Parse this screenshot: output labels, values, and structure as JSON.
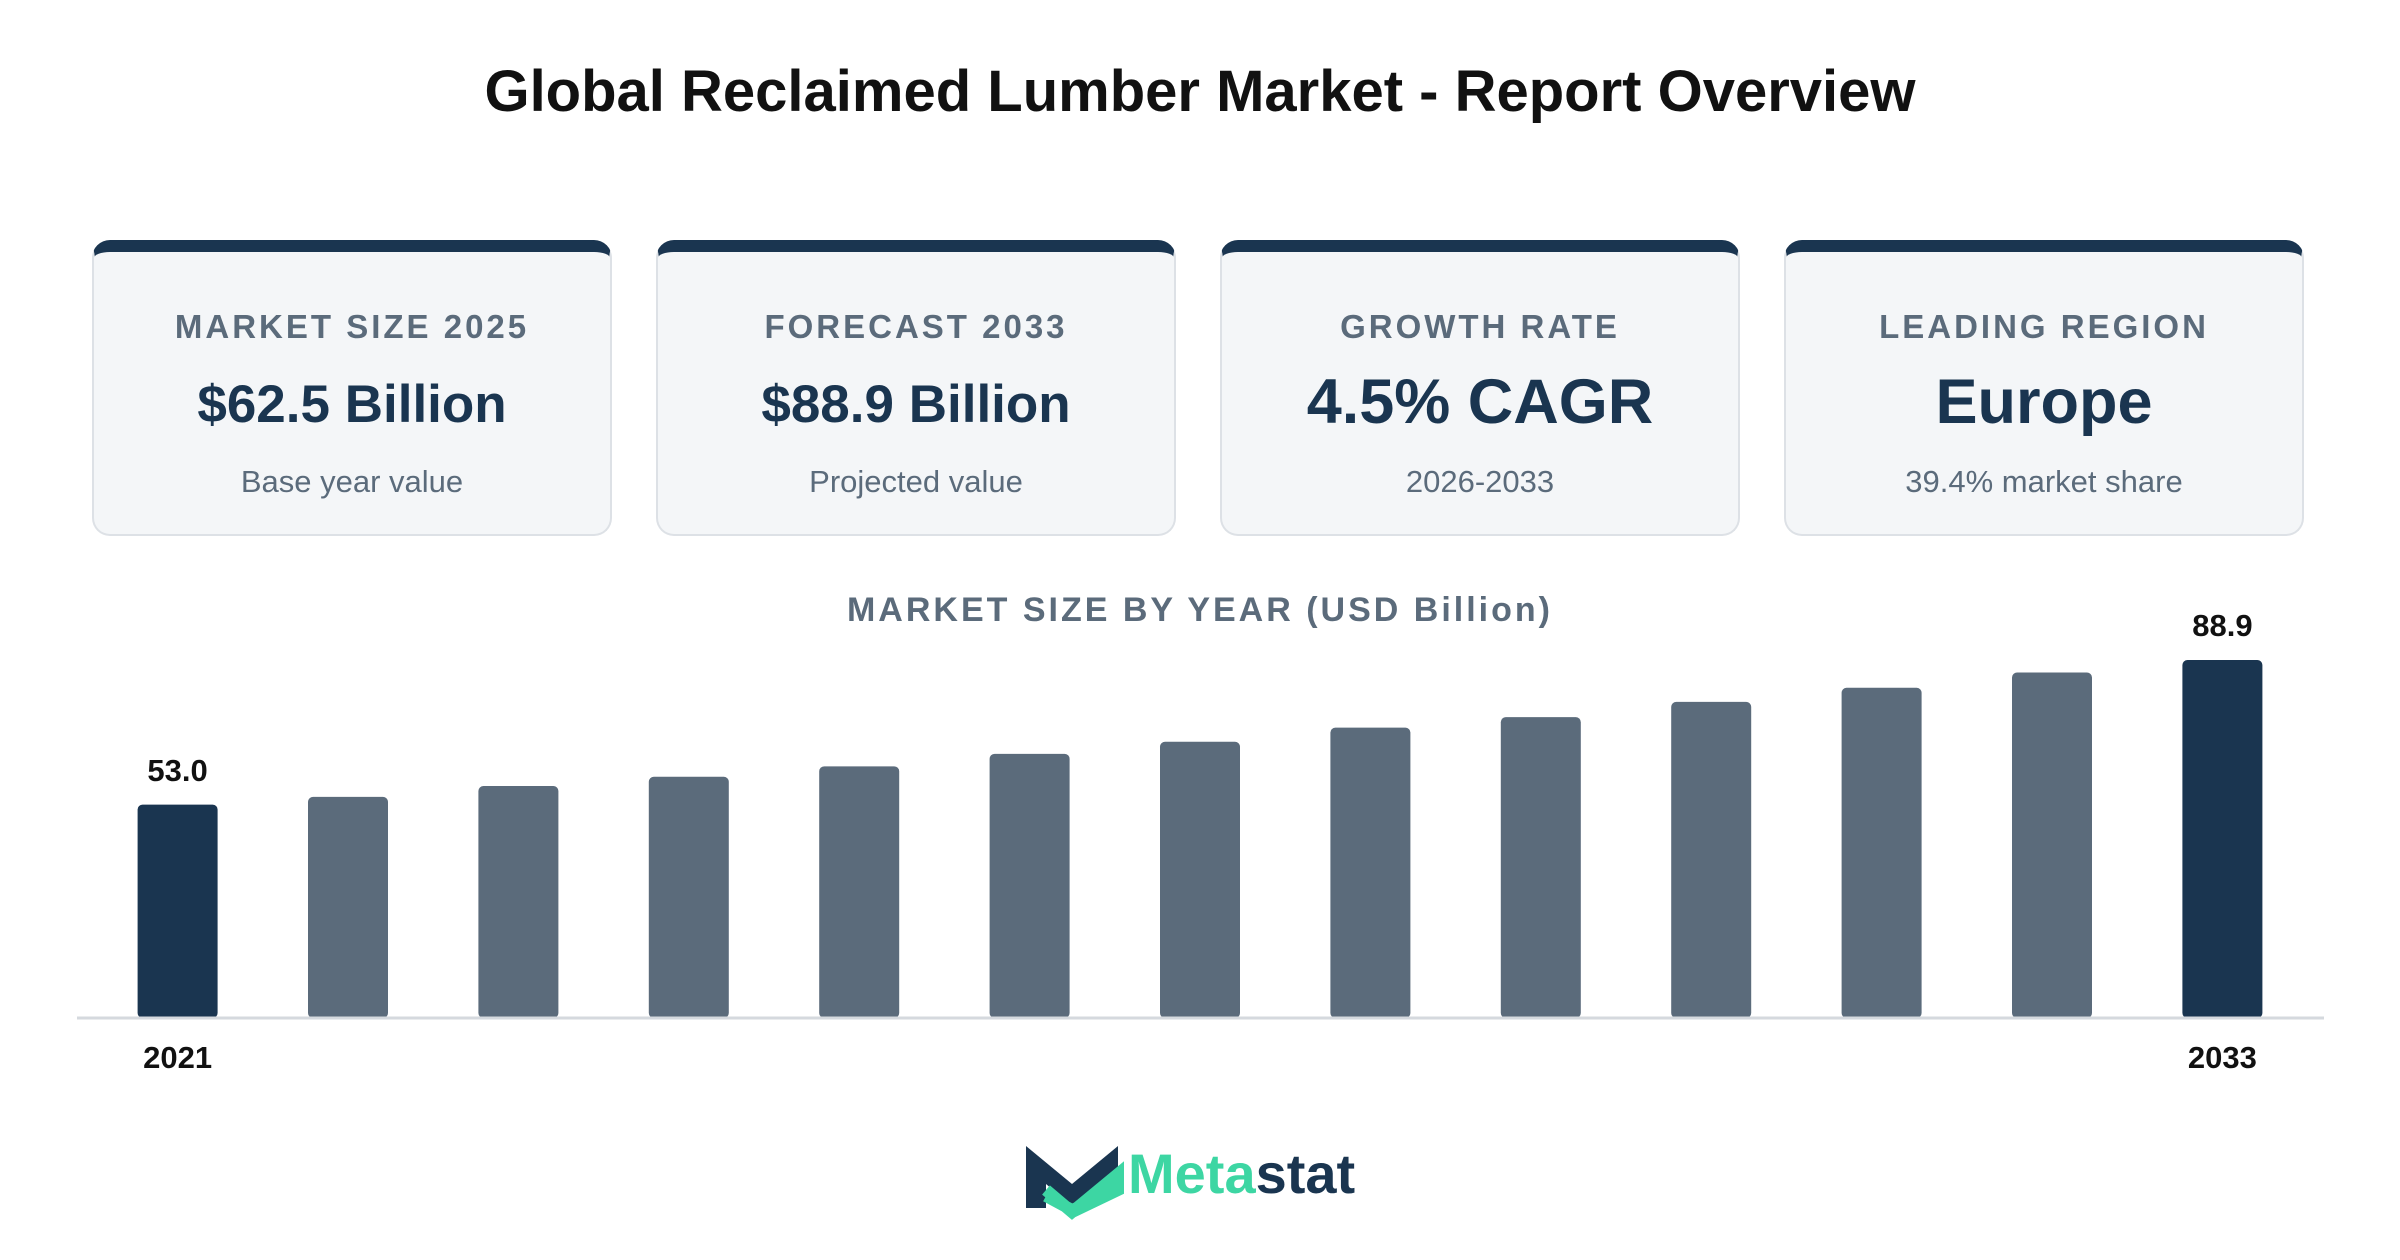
{
  "header": {
    "title": "Global Reclaimed Lumber Market - Report Overview"
  },
  "cards": [
    {
      "label": "MARKET SIZE 2025",
      "value": "$62.5 Billion",
      "note": "Base year value"
    },
    {
      "label": "FORECAST 2033",
      "value": "$88.9 Billion",
      "note": "Projected value"
    },
    {
      "label": "GROWTH RATE",
      "value": "4.5% CAGR",
      "note": "2026-2033"
    },
    {
      "label": "LEADING REGION",
      "value": "Europe",
      "note": "39.4% market share"
    }
  ],
  "chart_data": {
    "type": "bar",
    "title": "MARKET SIZE BY YEAR (USD Billion)",
    "categories": [
      "2021",
      null,
      null,
      null,
      null,
      null,
      null,
      null,
      null,
      null,
      null,
      null,
      "2033"
    ],
    "values": [
      53.0,
      54.9,
      57.6,
      59.9,
      62.5,
      65.6,
      68.6,
      72.1,
      74.7,
      78.5,
      82.0,
      85.8,
      88.9
    ],
    "value_labels": [
      "53.0",
      null,
      null,
      null,
      null,
      null,
      null,
      null,
      null,
      null,
      null,
      null,
      "88.9"
    ],
    "colors": [
      "#1a3550",
      "#5b6b7b",
      "#5b6b7b",
      "#5b6b7b",
      "#5b6b7b",
      "#5b6b7b",
      "#5b6b7b",
      "#5b6b7b",
      "#5b6b7b",
      "#5b6b7b",
      "#5b6b7b",
      "#5b6b7b",
      "#1a3550"
    ]
  },
  "logo": {
    "part1": "Meta",
    "part2": "stat"
  }
}
